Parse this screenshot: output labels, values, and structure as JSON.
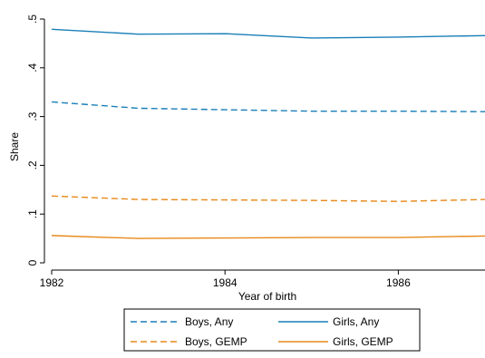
{
  "chart_data": {
    "type": "line",
    "xlabel": "Year of birth",
    "ylabel": "Share",
    "xlim": [
      1982,
      1987
    ],
    "ylim": [
      0,
      0.5
    ],
    "x_ticks": [
      1982,
      1984,
      1986
    ],
    "x_tick_labels": [
      "1982",
      "1984",
      "1986"
    ],
    "y_ticks": [
      0,
      0.1,
      0.2,
      0.3,
      0.4,
      0.5
    ],
    "y_tick_labels": [
      "0",
      ".1",
      ".2",
      ".3",
      ".4",
      ".5"
    ],
    "grid": false,
    "legend_placement": "bottom",
    "x": [
      1982,
      1983,
      1984,
      1985,
      1986,
      1987
    ],
    "series": [
      {
        "name": "Boys, Any",
        "color": "#1a7fb8",
        "dash": "dashed",
        "values": [
          0.33,
          0.317,
          0.314,
          0.311,
          0.311,
          0.31
        ]
      },
      {
        "name": "Girls, Any",
        "color": "#1a7fb8",
        "dash": "solid",
        "values": [
          0.479,
          0.469,
          0.47,
          0.461,
          0.463,
          0.466
        ]
      },
      {
        "name": "Boys, GEMP",
        "color": "#e8891a",
        "dash": "dashed",
        "values": [
          0.137,
          0.13,
          0.129,
          0.128,
          0.126,
          0.13
        ]
      },
      {
        "name": "Girls, GEMP",
        "color": "#e8891a",
        "dash": "solid",
        "values": [
          0.056,
          0.05,
          0.051,
          0.052,
          0.052,
          0.055
        ]
      }
    ],
    "legend_order": [
      0,
      1,
      2,
      3
    ]
  }
}
